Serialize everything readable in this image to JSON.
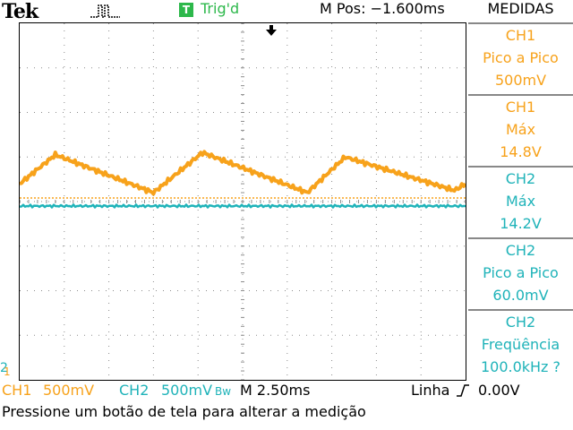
{
  "header": {
    "brand": "Tek",
    "trigger_icon_letter": "T",
    "trigger_status": "Trig'd",
    "horizontal_position": "M Pos: −1.600ms",
    "panel_title": "MEDIDAS"
  },
  "measurements": [
    {
      "channel": "CH1",
      "type": "Pico a Pico",
      "value": "500mV",
      "color": "#f7a21b"
    },
    {
      "channel": "CH1",
      "type": "Máx",
      "value": "14.8V",
      "color": "#f7a21b"
    },
    {
      "channel": "CH2",
      "type": "Máx",
      "value": "14.2V",
      "color": "#1fb3b9"
    },
    {
      "channel": "CH2",
      "type": "Pico a Pico",
      "value": "60.0mV",
      "color": "#1fb3b9"
    },
    {
      "channel": "CH2",
      "type": "Freqüência",
      "value": "100.0kHz ?",
      "color": "#1fb3b9"
    }
  ],
  "status_bar": {
    "ch1_label": "CH1",
    "ch1_scale": "500mV",
    "ch2_label": "CH2",
    "ch2_scale": "500mV",
    "ch2_bw": "Bw",
    "timebase": "M 2.50ms",
    "trigger_source": "Linha",
    "trigger_slope_icon": "rising-edge-icon",
    "trigger_level": "0.00V"
  },
  "message": "Pressione um botão de tela para alterar a medição",
  "markers": {
    "ch2_ground": "2",
    "ch1_ground": "1"
  },
  "colors": {
    "ch1": "#f7a21b",
    "ch2": "#1fb3b9",
    "trigger": "#2db84b",
    "grid": "#8c8c8c"
  },
  "chart_data": {
    "type": "line",
    "grid": {
      "horizontal_divisions": 10,
      "vertical_divisions": 8
    },
    "series": [
      {
        "name": "CH1",
        "shape": "triangle",
        "points_div": [
          [
            0,
            3.6
          ],
          [
            0.8,
            2.95
          ],
          [
            3.0,
            3.8
          ],
          [
            4.1,
            2.9
          ],
          [
            6.45,
            3.8
          ],
          [
            7.3,
            3.0
          ],
          [
            9.75,
            3.75
          ],
          [
            10,
            3.6
          ]
        ]
      },
      {
        "name": "CH2",
        "shape": "flat",
        "points_div": [
          [
            0,
            4.1
          ],
          [
            10,
            4.1
          ]
        ]
      }
    ]
  }
}
